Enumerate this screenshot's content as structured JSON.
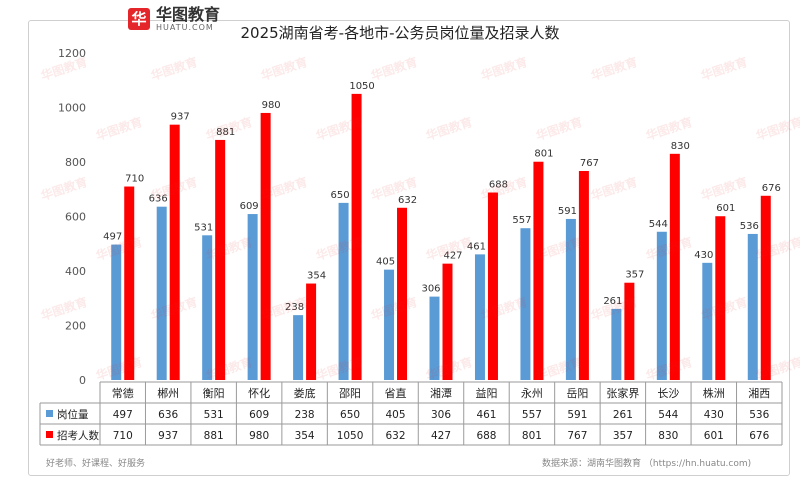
{
  "brand": {
    "mark": "华",
    "name_cn": "华图教育",
    "name_en": "HUATU.COM"
  },
  "watermark_text": "华图教育",
  "footer": {
    "left": "好老师、好课程、好服务",
    "right": "数据来源：湖南华图教育 （https://hn.huatu.com)"
  },
  "chart_data": {
    "type": "bar",
    "title": "2025湖南省考-各地市-公务员岗位量及招录人数",
    "categories": [
      "常德",
      "郴州",
      "衡阳",
      "怀化",
      "娄底",
      "邵阳",
      "省直",
      "湘潭",
      "益阳",
      "永州",
      "岳阳",
      "张家界",
      "长沙",
      "株洲",
      "湘西"
    ],
    "series": [
      {
        "name": "岗位量",
        "color": "#5b9bd5",
        "values": [
          497,
          636,
          531,
          609,
          238,
          650,
          405,
          306,
          461,
          557,
          591,
          261,
          544,
          430,
          536
        ]
      },
      {
        "name": "招考人数",
        "color": "#ff0000",
        "values": [
          710,
          937,
          881,
          980,
          354,
          1050,
          632,
          427,
          688,
          801,
          767,
          357,
          830,
          601,
          676
        ]
      }
    ],
    "ylim": [
      0,
      1200
    ],
    "yticks": [
      0,
      200,
      400,
      600,
      800,
      1000,
      1200
    ],
    "grid": false,
    "legend": "table-bottom"
  }
}
